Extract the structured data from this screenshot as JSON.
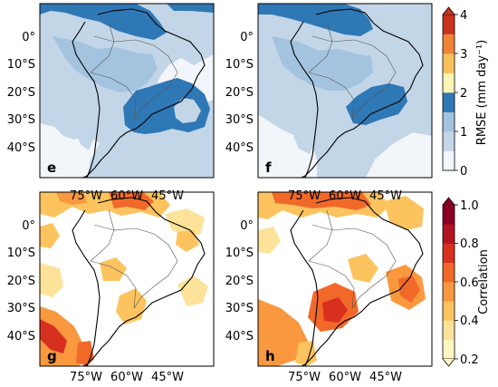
{
  "figure": {
    "panels": [
      {
        "id": "e",
        "letter": "e",
        "variable": "rmse"
      },
      {
        "id": "f",
        "letter": "f",
        "variable": "rmse"
      },
      {
        "id": "g",
        "letter": "g",
        "variable": "correlation"
      },
      {
        "id": "h",
        "letter": "h",
        "variable": "correlation"
      }
    ],
    "lat_ticks": [
      "0°",
      "10°S",
      "20°S",
      "30°S",
      "40°S"
    ],
    "lon_ticks": [
      "75°W",
      "60°W",
      "45°W"
    ],
    "map_extent": {
      "lon_min": -82,
      "lon_max": -30,
      "lat_min": -50,
      "lat_max": 8
    }
  },
  "colorbars": {
    "rmse": {
      "label": "RMSE (mm day⁻¹)",
      "ticks": [
        "0",
        "1",
        "2",
        "3",
        "4"
      ],
      "colors": [
        "#f2f5fa",
        "#c3d6e8",
        "#a3c3df",
        "#2f78b6",
        "#fbf5b4",
        "#f8c15a",
        "#ef8336",
        "#c8321f"
      ]
    },
    "correlation": {
      "label": "Correlation",
      "ticks": [
        "0.2",
        "0.4",
        "0.6",
        "0.8",
        "1.0"
      ],
      "colors": [
        "#fff6c1",
        "#fde39a",
        "#fcc35f",
        "#f9983e",
        "#f16929",
        "#d8301f",
        "#b31220",
        "#8a0024"
      ]
    }
  }
}
